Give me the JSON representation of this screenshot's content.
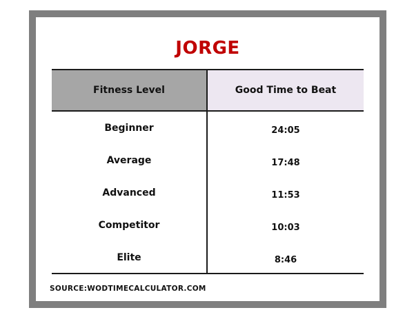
{
  "title": "JORGE",
  "table": {
    "headers": {
      "fitness_level": "Fitness Level",
      "good_time": "Good Time to Beat"
    },
    "rows": [
      {
        "level": "Beginner",
        "time": "24:05"
      },
      {
        "level": "Average",
        "time": "17:48"
      },
      {
        "level": "Advanced",
        "time": "11:53"
      },
      {
        "level": "Competitor",
        "time": "10:03"
      },
      {
        "level": "Elite",
        "time": "8:46"
      }
    ]
  },
  "source": "SOURCE:WODTIMECALCULATOR.COM",
  "colors": {
    "title": "#c00000",
    "frame": "#7f7f7f",
    "header_left_bg": "#a6a6a6",
    "header_right_bg": "#ede7f1",
    "rules": "#1a1a1a"
  }
}
